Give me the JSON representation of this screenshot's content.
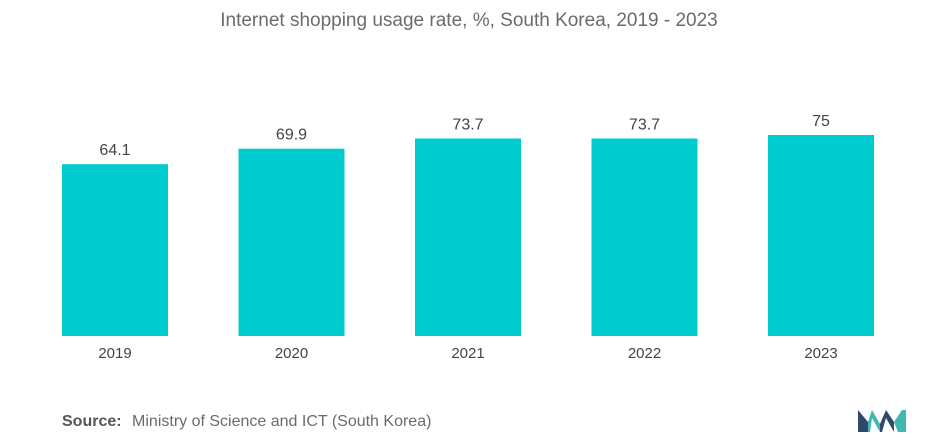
{
  "title": "Internet shopping usage rate, %, South Korea, 2019 - 2023",
  "source": {
    "label": "Source:",
    "text": "Ministry of Science and ICT (South Korea)"
  },
  "colors": {
    "bar": "#00cccf",
    "logo_dark": "#2d4a6b",
    "logo_teal": "#3fb8b3"
  },
  "logo_icon": "mordor-intelligence-logo",
  "chart_data": {
    "type": "bar",
    "categories": [
      "2019",
      "2020",
      "2021",
      "2022",
      "2023"
    ],
    "values": [
      64.1,
      69.9,
      73.7,
      73.7,
      75
    ],
    "value_labels": [
      "64.1",
      "69.9",
      "73.7",
      "73.7",
      "75"
    ],
    "title": "Internet shopping usage rate, %, South Korea, 2019 - 2023",
    "xlabel": "",
    "ylabel": "",
    "ylim": [
      0,
      75
    ],
    "grid": false,
    "legend": "none"
  }
}
